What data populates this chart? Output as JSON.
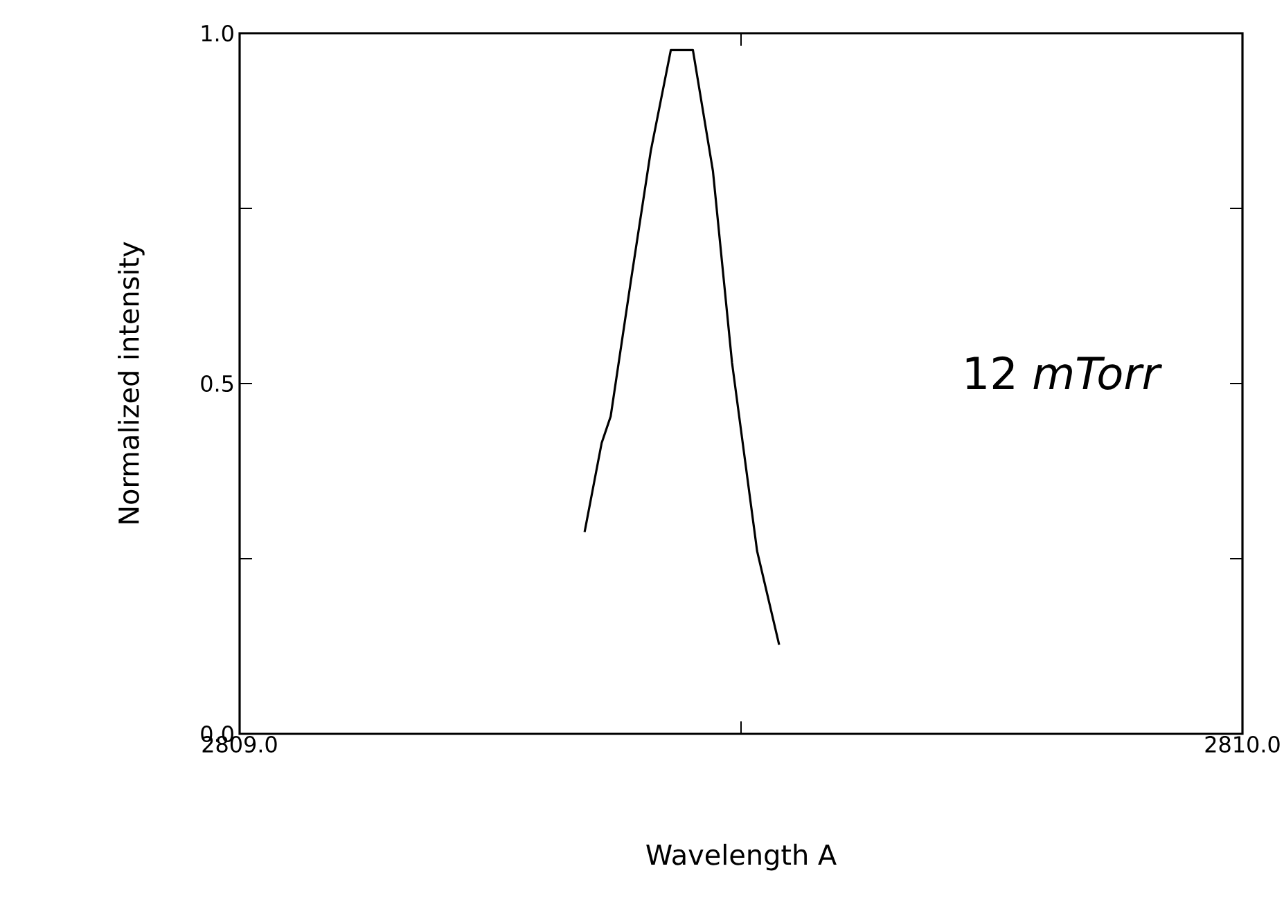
{
  "chart_data": {
    "type": "line",
    "xlabel": "Wavelength  A",
    "ylabel": "Normalized intensity",
    "annotations": [
      "12 *mTorr*"
    ],
    "xlim": [
      2809.0,
      2810.0
    ],
    "xticks": [
      {
        "value": 2809.0,
        "label": "2809.0"
      },
      {
        "value": 2809.5,
        "label": null
      },
      {
        "value": 2810.0,
        "label": "2810.0"
      }
    ],
    "ylim": [
      0.0,
      1.0
    ],
    "yticks": [
      {
        "value": 0.0,
        "label": "0.0"
      },
      {
        "value": 0.25,
        "label": null
      },
      {
        "value": 0.5,
        "label": "0.5"
      },
      {
        "value": 0.75,
        "label": null
      },
      {
        "value": 1.0,
        "label": "1.0"
      }
    ],
    "x": [
      2809.344,
      2809.361,
      2809.37,
      2809.39,
      2809.41,
      2809.43,
      2809.452,
      2809.472,
      2809.491,
      2809.516,
      2809.538
    ],
    "series": [
      {
        "color": "#000000",
        "values": [
          0.288,
          0.415,
          0.453,
          0.645,
          0.832,
          0.976,
          0.976,
          0.803,
          0.53,
          0.261,
          0.127
        ]
      }
    ]
  }
}
